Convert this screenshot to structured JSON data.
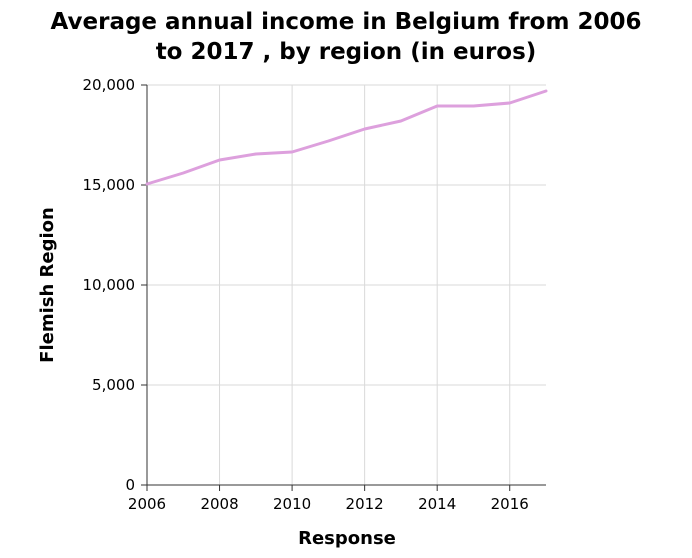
{
  "chart_data": {
    "type": "line",
    "title_lines": [
      "Average annual income in Belgium from 2006",
      "to 2017 , by region (in euros)"
    ],
    "xlabel": "Response",
    "ylabel": "Flemish Region",
    "x_ticks": [
      2006,
      2008,
      2010,
      2012,
      2014,
      2016
    ],
    "x_tick_labels": [
      "2006",
      "2008",
      "2010",
      "2012",
      "2014",
      "2016"
    ],
    "y_ticks": [
      0,
      5000,
      10000,
      15000,
      20000
    ],
    "y_tick_labels": [
      "0",
      "5,000",
      "10,000",
      "15,000",
      "20,000"
    ],
    "xlim": [
      2006,
      2017
    ],
    "ylim": [
      0,
      20000
    ],
    "grid": true,
    "series": [
      {
        "color": "#dda0dd",
        "x": [
          2006,
          2007,
          2008,
          2009,
          2010,
          2011,
          2012,
          2013,
          2014,
          2015,
          2016,
          2017
        ],
        "values": [
          15050,
          15600,
          16250,
          16550,
          16650,
          17200,
          17800,
          18200,
          18950,
          18950,
          19100,
          19700
        ]
      }
    ]
  }
}
